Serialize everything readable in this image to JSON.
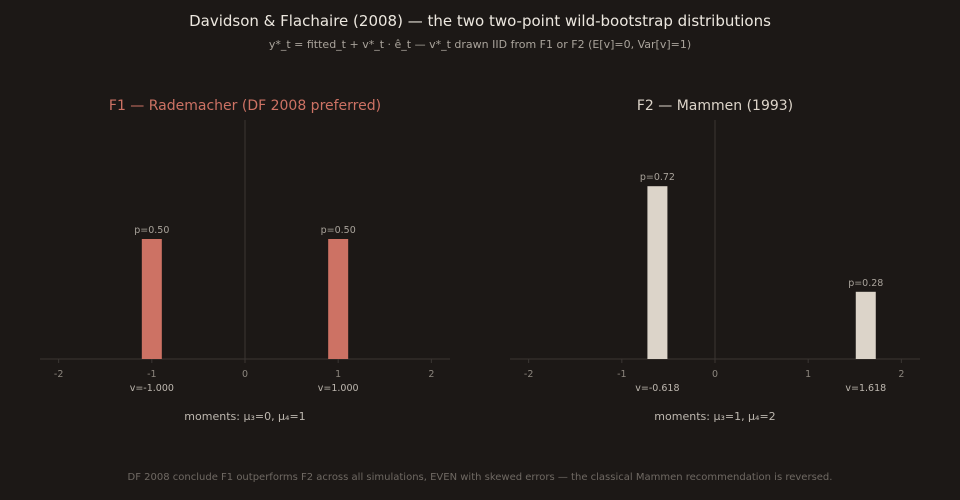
{
  "title": "Davidson & Flachaire (2008) — the two two-point wild-bootstrap distributions",
  "subtitle": "y*_t = fitted_t + v*_t · ê_t — v*_t drawn IID from F1 or F2 (E[v]=0, Var[v]=1)",
  "footnote": "DF 2008 conclude F1 outperforms F2 across all simulations, EVEN with skewed errors — the classical Mammen recommendation is reversed.",
  "colors": {
    "background": "#1c1816",
    "f1": "#cd7264",
    "f2": "#dcd4c9",
    "axis": "#3b3633"
  },
  "chart_data": [
    {
      "type": "bar",
      "title": "F1 — Rademacher (DF 2008 preferred)",
      "color": "#cd7264",
      "xlim": [
        -2.2,
        2.2
      ],
      "ylim": [
        0,
        1
      ],
      "x_ticks": [
        -2,
        -1,
        0,
        1,
        2
      ],
      "x": [
        -1.0,
        1.0
      ],
      "values": [
        0.5,
        0.5
      ],
      "bar_labels": [
        "p=0.50",
        "p=0.50"
      ],
      "value_labels": [
        "v=-1.000",
        "v=1.000"
      ],
      "moments": "moments: μ₃=0, μ₄=1",
      "grid": false
    },
    {
      "type": "bar",
      "title": "F2 — Mammen (1993)",
      "color": "#dcd4c9",
      "xlim": [
        -2.2,
        2.2
      ],
      "ylim": [
        0,
        1
      ],
      "x_ticks": [
        -2,
        -1,
        0,
        1,
        2
      ],
      "x": [
        -0.618,
        1.618
      ],
      "values": [
        0.72,
        0.28
      ],
      "bar_labels": [
        "p=0.72",
        "p=0.28"
      ],
      "value_labels": [
        "v=-0.618",
        "v=1.618"
      ],
      "moments": "moments: μ₃=1, μ₄=2",
      "grid": false
    }
  ]
}
